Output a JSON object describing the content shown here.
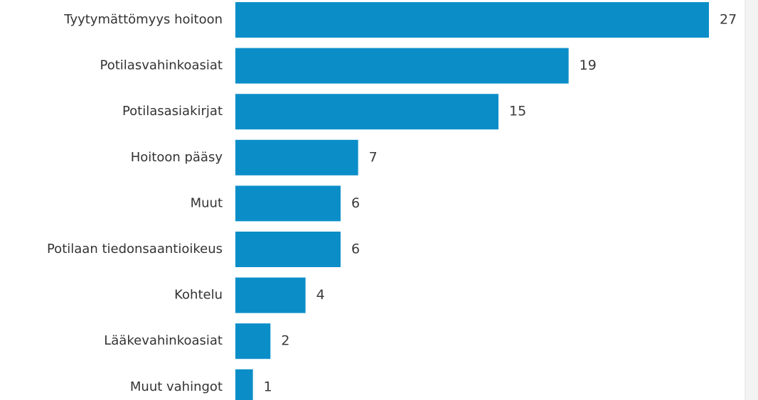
{
  "chart_data": {
    "type": "bar",
    "orientation": "horizontal",
    "categories": [
      "Tyytymättömyys hoitoon",
      "Potilasvahinkoasiat",
      "Potilasasiakirjat",
      "Hoitoon pääsy",
      "Muut",
      "Potilaan tiedonsaantioikeus",
      "Kohtelu",
      "Lääkevahinkoasiat",
      "Muut vahingot"
    ],
    "values": [
      27,
      19,
      15,
      7,
      6,
      6,
      4,
      2,
      1
    ],
    "color": "#0b8ec8"
  }
}
